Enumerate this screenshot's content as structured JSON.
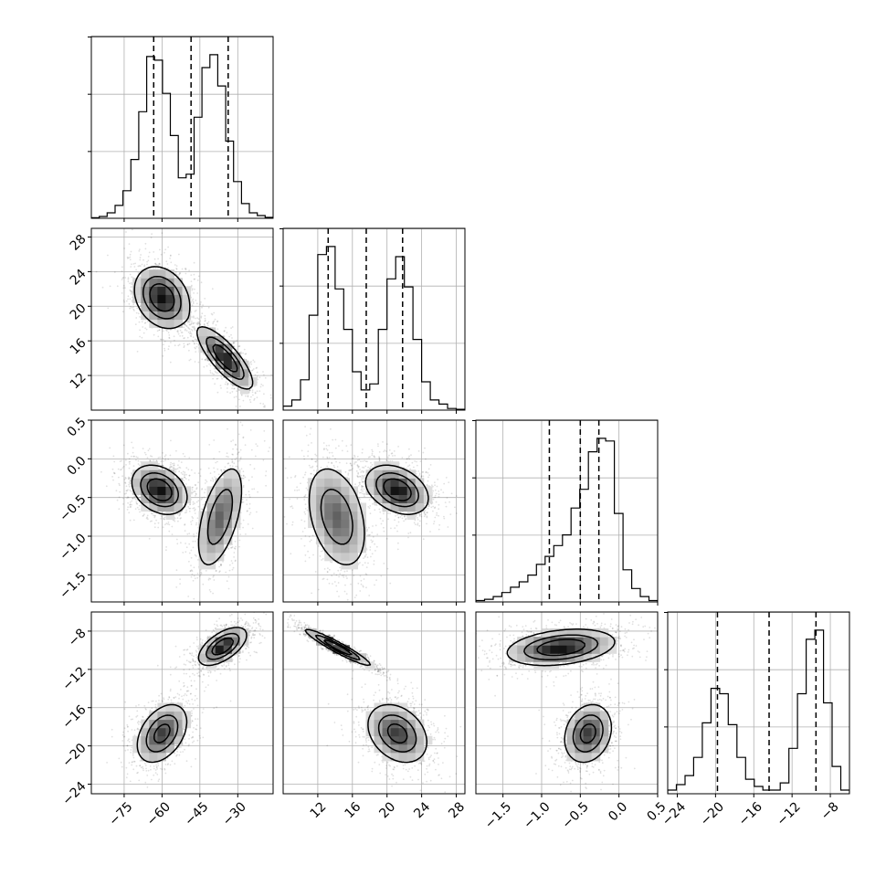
{
  "chart_data": {
    "type": "corner",
    "title": "",
    "grid": true,
    "parameters": [
      {
        "index": 0,
        "range": [
          -88,
          -16
        ],
        "ticks": [
          -75,
          -60,
          -45,
          -30
        ],
        "tick_labels": [
          "−75",
          "−60",
          "−45",
          "−30"
        ],
        "quantiles": [
          -63.3,
          -48.5,
          -33.8
        ],
        "histogram": [
          0.003,
          0.01,
          0.03,
          0.07,
          0.15,
          0.32,
          0.58,
          0.88,
          0.86,
          0.68,
          0.45,
          0.22,
          0.24,
          0.55,
          0.82,
          0.89,
          0.72,
          0.42,
          0.2,
          0.08,
          0.03,
          0.015,
          0.005
        ]
      },
      {
        "index": 1,
        "range": [
          8,
          29
        ],
        "ticks": [
          12,
          16,
          20,
          24,
          28
        ],
        "tick_labels": [
          "12",
          "16",
          "20",
          "24",
          "28"
        ],
        "quantiles": [
          13.2,
          17.6,
          21.8
        ],
        "histogram": [
          0.02,
          0.05,
          0.15,
          0.47,
          0.77,
          0.81,
          0.6,
          0.4,
          0.19,
          0.1,
          0.13,
          0.4,
          0.65,
          0.76,
          0.61,
          0.35,
          0.14,
          0.05,
          0.03,
          0.008,
          0.004
        ]
      },
      {
        "index": 2,
        "range": [
          -1.85,
          0.5
        ],
        "ticks": [
          -1.5,
          -1.0,
          -0.5,
          0.0,
          0.5
        ],
        "tick_labels": [
          "−1.5",
          "−1.0",
          "−0.5",
          "0.0",
          "0.5"
        ],
        "quantiles": [
          -0.9,
          -0.5,
          -0.26
        ],
        "histogram": [
          0.005,
          0.01,
          0.02,
          0.035,
          0.055,
          0.075,
          0.1,
          0.14,
          0.17,
          0.21,
          0.25,
          0.35,
          0.42,
          0.56,
          0.61,
          0.6,
          0.33,
          0.12,
          0.05,
          0.02,
          0.005
        ]
      },
      {
        "index": 3,
        "range": [
          -25,
          -6
        ],
        "ticks": [
          -24,
          -20,
          -16,
          -12,
          -8
        ],
        "tick_labels": [
          "−24",
          "−20",
          "−16",
          "−12",
          "−8"
        ],
        "quantiles": [
          -19.8,
          -14.4,
          -9.5
        ],
        "histogram": [
          0.02,
          0.05,
          0.1,
          0.2,
          0.39,
          0.58,
          0.55,
          0.38,
          0.2,
          0.08,
          0.04,
          0.02,
          0.02,
          0.06,
          0.25,
          0.55,
          0.85,
          0.9,
          0.5,
          0.15,
          0.02
        ]
      }
    ],
    "panels_2d": [
      {
        "x": 0,
        "y": 1,
        "modes": [
          {
            "cx": -60,
            "cy": 21,
            "sx": 5.5,
            "sy": 1.8,
            "rho": -0.25,
            "w": 1
          },
          {
            "cx": -35,
            "cy": 14,
            "sx": 5.5,
            "sy": 1.8,
            "rho": -0.8,
            "w": 1
          }
        ]
      },
      {
        "x": 0,
        "y": 2,
        "modes": [
          {
            "cx": -61,
            "cy": -0.4,
            "sx": 5.5,
            "sy": 0.16,
            "rho": -0.3,
            "w": 1.2
          },
          {
            "cx": -37,
            "cy": -0.75,
            "sx": 4.8,
            "sy": 0.35,
            "rho": 0.55,
            "w": 0.8
          }
        ]
      },
      {
        "x": 1,
        "y": 2,
        "modes": [
          {
            "cx": 14.2,
            "cy": -0.75,
            "sx": 1.8,
            "sy": 0.35,
            "rho": -0.35,
            "w": 0.8
          },
          {
            "cx": 21.2,
            "cy": -0.4,
            "sx": 1.8,
            "sy": 0.16,
            "rho": -0.35,
            "w": 1.2
          }
        ]
      },
      {
        "x": 0,
        "y": 3,
        "modes": [
          {
            "cx": -36,
            "cy": -9.6,
            "sx": 4.8,
            "sy": 1.0,
            "rho": 0.6,
            "w": 1.1
          },
          {
            "cx": -60,
            "cy": -18.7,
            "sx": 5.2,
            "sy": 1.6,
            "rho": 0.4,
            "w": 0.9
          }
        ]
      },
      {
        "x": 1,
        "y": 3,
        "modes": [
          {
            "cx": 14.3,
            "cy": -9.7,
            "sx": 1.9,
            "sy": 0.95,
            "rho": -0.95,
            "w": 1.1
          },
          {
            "cx": 21.2,
            "cy": -18.7,
            "sx": 1.8,
            "sy": 1.6,
            "rho": -0.3,
            "w": 0.9
          }
        ]
      },
      {
        "x": 2,
        "y": 3,
        "modes": [
          {
            "cx": -0.75,
            "cy": -9.7,
            "sx": 0.35,
            "sy": 0.95,
            "rho": 0.3,
            "w": 1.1
          },
          {
            "cx": -0.4,
            "cy": -18.7,
            "sx": 0.16,
            "sy": 1.6,
            "rho": 0.2,
            "w": 0.9
          }
        ]
      }
    ]
  }
}
